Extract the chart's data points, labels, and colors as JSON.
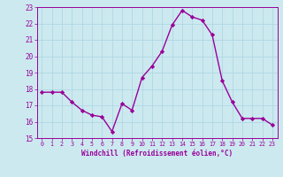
{
  "x": [
    0,
    1,
    2,
    3,
    4,
    5,
    6,
    7,
    8,
    9,
    10,
    11,
    12,
    13,
    14,
    15,
    16,
    17,
    18,
    19,
    20,
    21,
    22,
    23
  ],
  "y": [
    17.8,
    17.8,
    17.8,
    17.2,
    16.7,
    16.4,
    16.3,
    15.4,
    17.1,
    16.7,
    18.7,
    19.4,
    20.3,
    21.9,
    22.8,
    22.4,
    22.2,
    21.3,
    18.5,
    17.2,
    16.2,
    16.2,
    16.2,
    15.8
  ],
  "line_color": "#990099",
  "marker": "D",
  "markersize": 2.2,
  "linewidth": 1.0,
  "bg_color": "#cce9f0",
  "grid_color": "#b0d8e4",
  "xlabel": "Windchill (Refroidissement éolien,°C)",
  "xlabel_color": "#990099",
  "tick_color": "#990099",
  "xlim": [
    -0.5,
    23.5
  ],
  "ylim": [
    15,
    23
  ],
  "yticks": [
    15,
    16,
    17,
    18,
    19,
    20,
    21,
    22,
    23
  ],
  "xticks": [
    0,
    1,
    2,
    3,
    4,
    5,
    6,
    7,
    8,
    9,
    10,
    11,
    12,
    13,
    14,
    15,
    16,
    17,
    18,
    19,
    20,
    21,
    22,
    23
  ]
}
